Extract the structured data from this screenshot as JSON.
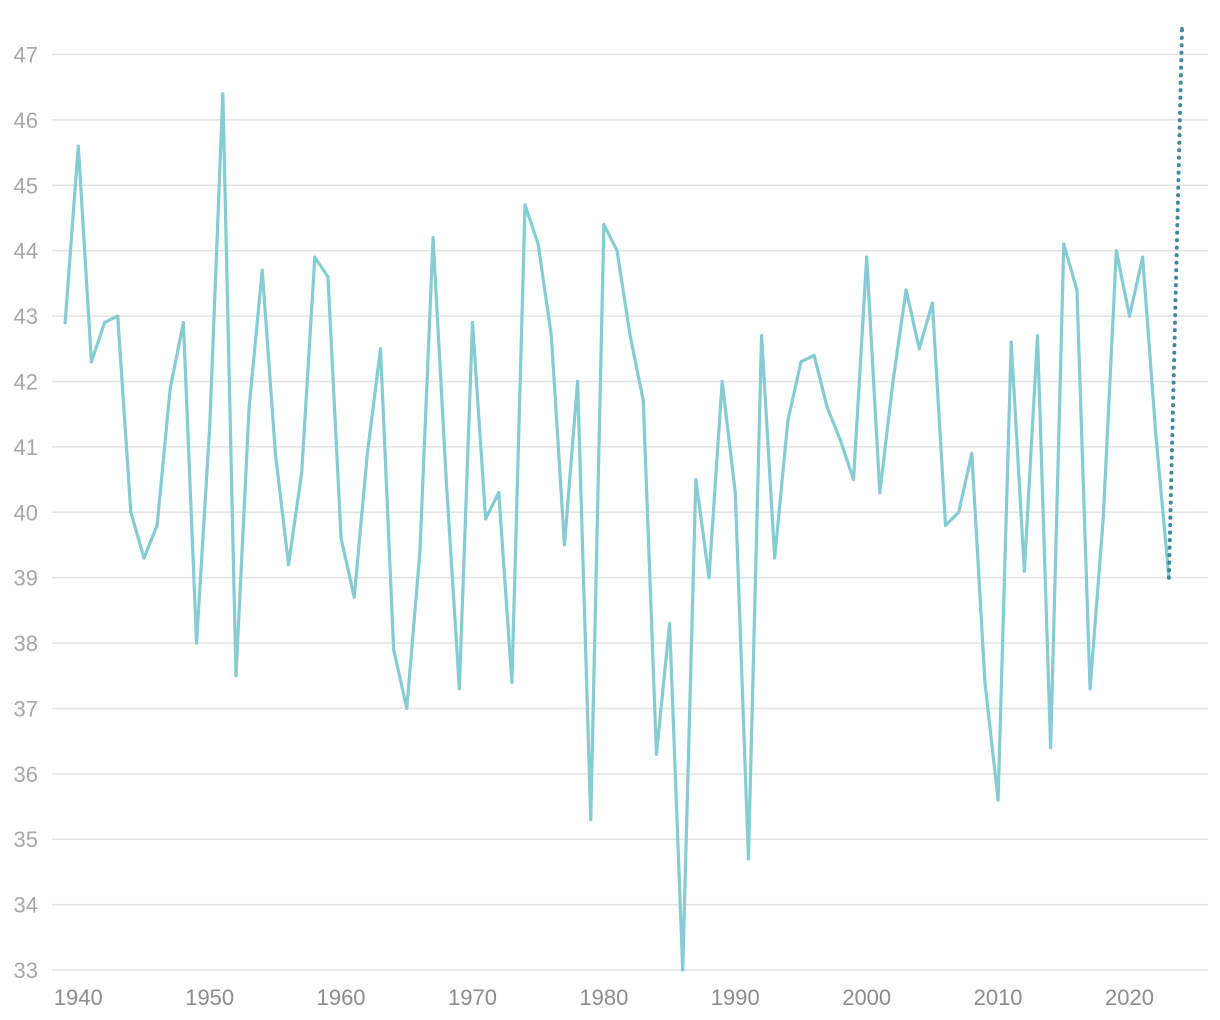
{
  "chart_data": {
    "type": "line",
    "title": "",
    "xlabel": "",
    "ylabel": "",
    "xlim": [
      1938,
      2025
    ],
    "ylim": [
      33,
      47
    ],
    "grid": true,
    "y_ticks": [
      "33",
      "34",
      "35",
      "36",
      "37",
      "38",
      "39",
      "40",
      "41",
      "42",
      "43",
      "44",
      "45",
      "46",
      "47"
    ],
    "x_ticks": [
      "1940",
      "1950",
      "1960",
      "1970",
      "1980",
      "1990",
      "2000",
      "2010",
      "2020"
    ],
    "colors": {
      "series": "#86ccd3",
      "projection": "#3f8a96",
      "grid": "#e3e3e3"
    },
    "series": [
      {
        "style": "solid",
        "x": [
          1939,
          1940,
          1941,
          1942,
          1943,
          1944,
          1945,
          1946,
          1947,
          1948,
          1949,
          1950,
          1951,
          1952,
          1953,
          1954,
          1955,
          1956,
          1957,
          1958,
          1959,
          1960,
          1961,
          1962,
          1963,
          1964,
          1965,
          1966,
          1967,
          1968,
          1969,
          1970,
          1971,
          1972,
          1973,
          1974,
          1975,
          1976,
          1977,
          1978,
          1979,
          1980,
          1981,
          1982,
          1983,
          1984,
          1985,
          1986,
          1987,
          1988,
          1989,
          1990,
          1991,
          1992,
          1993,
          1994,
          1995,
          1996,
          1997,
          1998,
          1999,
          2000,
          2001,
          2002,
          2003,
          2004,
          2005,
          2006,
          2007,
          2008,
          2009,
          2010,
          2011,
          2012,
          2013,
          2014,
          2015,
          2016,
          2017,
          2018,
          2019,
          2020,
          2021,
          2022,
          2023
        ],
        "values": [
          42.9,
          45.6,
          42.3,
          42.9,
          43.0,
          40.0,
          39.3,
          39.8,
          41.9,
          42.9,
          38.0,
          41.3,
          46.4,
          37.5,
          41.6,
          43.7,
          40.9,
          39.2,
          40.6,
          43.9,
          43.6,
          39.6,
          38.7,
          40.9,
          42.5,
          37.9,
          37.0,
          39.4,
          44.2,
          40.5,
          37.3,
          42.9,
          39.9,
          40.3,
          37.4,
          44.7,
          44.1,
          42.7,
          39.5,
          42.0,
          35.3,
          44.4,
          44.0,
          42.7,
          41.7,
          36.3,
          38.3,
          33.0,
          40.5,
          39.0,
          42.0,
          40.3,
          34.7,
          42.7,
          39.3,
          41.4,
          42.3,
          42.4,
          41.6,
          41.1,
          40.5,
          43.9,
          40.3,
          42.0,
          43.4,
          42.5,
          43.2,
          39.8,
          40.0,
          40.9,
          37.4,
          35.6,
          42.6,
          39.1,
          42.7,
          36.4,
          44.1,
          43.4,
          37.3,
          39.9,
          44.0,
          43.0,
          43.9,
          41.2,
          39.0
        ]
      },
      {
        "style": "dotted",
        "x": [
          2023,
          2024
        ],
        "values": [
          39.0,
          47.4
        ]
      }
    ]
  }
}
